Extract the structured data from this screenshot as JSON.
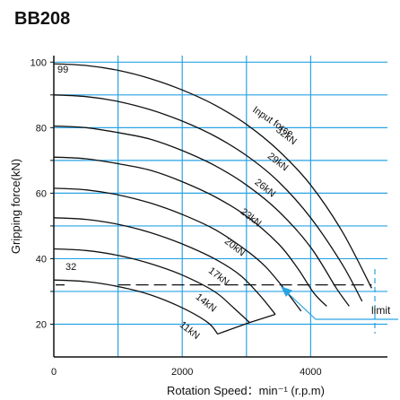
{
  "chart_data": {
    "type": "line",
    "title": "BB208",
    "xlabel": "Rotation Speed：min⁻¹ (r.p.m)",
    "ylabel": "Gripping force(kN)",
    "x_ticks": [
      "0",
      "2000",
      "4000"
    ],
    "x_tick_values": [
      0,
      2000,
      4000
    ],
    "y_ticks": [
      "20",
      "40",
      "60",
      "80",
      "100"
    ],
    "y_tick_values": [
      20,
      40,
      60,
      80,
      100
    ],
    "xlim": [
      0,
      5000
    ],
    "ylim": [
      10,
      102
    ],
    "grid": true,
    "grid_color": "#29a3e3",
    "line_color": "#111111",
    "limit_color": "#29a3e3",
    "series": [
      {
        "name": "32kN",
        "label_at": [
          3450,
          79
        ],
        "x": [
          0,
          500,
          1000,
          1500,
          2000,
          2500,
          3000,
          3500,
          4000,
          4500,
          4950
        ],
        "y": [
          99.5,
          99,
          97.5,
          95,
          91.5,
          87,
          81,
          73,
          62.5,
          48,
          31
        ]
      },
      {
        "name": "29kN",
        "label_at": [
          3320,
          71
        ],
        "x": [
          0,
          500,
          1000,
          1500,
          2000,
          2500,
          3000,
          3500,
          4000,
          4500,
          4800
        ],
        "y": [
          90,
          89.5,
          88,
          85.5,
          82,
          77.5,
          71.5,
          63.5,
          52.5,
          38,
          27
        ]
      },
      {
        "name": "26kN",
        "label_at": [
          3120,
          63
        ],
        "x": [
          0,
          500,
          1000,
          1500,
          2000,
          2500,
          3000,
          3500,
          4000,
          4400,
          4600
        ],
        "y": [
          80.5,
          80,
          78.5,
          76.5,
          73,
          68.5,
          62.5,
          54.5,
          43.5,
          31,
          25.5
        ]
      },
      {
        "name": "23kN",
        "label_at": [
          2900,
          54
        ],
        "x": [
          0,
          500,
          1000,
          1500,
          2000,
          2500,
          3000,
          3500,
          3800,
          4050,
          4250
        ],
        "y": [
          71,
          70.5,
          69,
          67,
          63.5,
          59,
          53,
          44.5,
          37,
          29.5,
          25.5
        ]
      },
      {
        "name": "20kN",
        "label_at": [
          2650,
          45
        ],
        "x": [
          0,
          500,
          1000,
          1500,
          2000,
          2500,
          3000,
          3300,
          3600,
          3850
        ],
        "y": [
          61.5,
          61,
          59.5,
          57,
          53.5,
          49,
          42.5,
          37.5,
          30.5,
          24
        ]
      },
      {
        "name": "17kN",
        "label_at": [
          2400,
          36
        ],
        "x": [
          0,
          500,
          1000,
          1500,
          2000,
          2500,
          2900,
          3200,
          3450
        ],
        "y": [
          52.5,
          52,
          50.5,
          48,
          44.5,
          40,
          35,
          29,
          23
        ]
      },
      {
        "name": "14kN",
        "label_at": [
          2200,
          28
        ],
        "x": [
          0,
          500,
          1000,
          1500,
          2000,
          2500,
          2800,
          3050
        ],
        "y": [
          43,
          42.5,
          41,
          38.5,
          35,
          30,
          25,
          20.5
        ]
      },
      {
        "name": "11kN",
        "label_at": [
          1950,
          19.5
        ],
        "x": [
          0,
          500,
          1000,
          1500,
          2000,
          2400,
          2550
        ],
        "y": [
          33.5,
          33,
          31.5,
          29,
          25,
          20.5,
          17
        ]
      }
    ],
    "envelope": {
      "x": [
        2550,
        3050,
        3450
      ],
      "y": [
        17,
        20.5,
        23
      ]
    },
    "threshold": {
      "value": 32,
      "label": "32",
      "x_start": 1000,
      "x_end": 4950
    },
    "annotations": {
      "top_curve_value": "99",
      "input_force": "Input force",
      "limit": "limit"
    }
  }
}
